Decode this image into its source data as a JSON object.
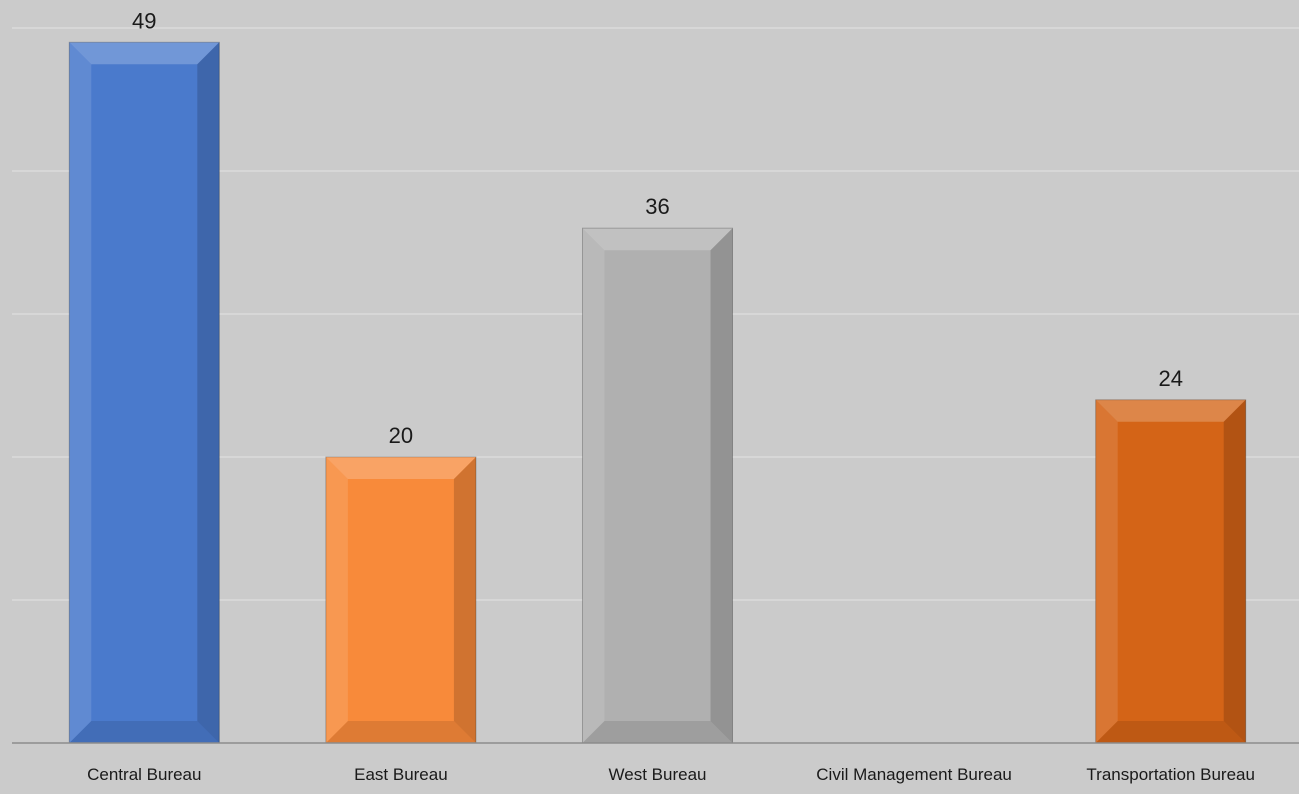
{
  "chart_data": {
    "type": "bar",
    "categories": [
      "Central Bureau",
      "East Bureau",
      "West Bureau",
      "Civil Management Bureau",
      "Transportation Bureau"
    ],
    "values": [
      49,
      20,
      36,
      null,
      24
    ],
    "data_labels": [
      "49",
      "20",
      "36",
      "",
      "24"
    ],
    "bar_colors": [
      "#4a7acc",
      "#f88a3a",
      "#b0b0b0",
      "#f88a3a",
      "#d46417"
    ],
    "background_color": "#cbcbcb",
    "gridline_color": "#dedede",
    "axis_color": "#8c8c8c",
    "ylim": [
      0,
      50
    ],
    "grid": true,
    "legend": "none"
  }
}
